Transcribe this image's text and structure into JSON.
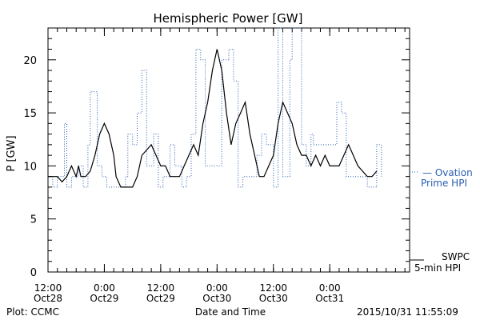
{
  "chart_data": {
    "type": "line",
    "title": "Hemispheric Power [GW]",
    "xlabel": "Date and Time",
    "ylabel": "P [GW]",
    "ylim": [
      0,
      23
    ],
    "yticks": [
      0,
      5,
      10,
      15,
      20
    ],
    "xlim": [
      "2015-10-28T12:00",
      "2015-10-31T17:00"
    ],
    "xtick_labels": [
      {
        "t": "2015-10-28T12:00",
        "time": "12:00",
        "date": "Oct28"
      },
      {
        "t": "2015-10-29T00:00",
        "time": "0:00",
        "date": "Oct29"
      },
      {
        "t": "2015-10-29T12:00",
        "time": "12:00",
        "date": "Oct29"
      },
      {
        "t": "2015-10-30T00:00",
        "time": "0:00",
        "date": "Oct30"
      },
      {
        "t": "2015-10-30T12:00",
        "time": "12:00",
        "date": "Oct30"
      },
      {
        "t": "2015-10-31T00:00",
        "time": "0:00",
        "date": "Oct31"
      }
    ],
    "series": [
      {
        "name": "Ovation Prime HPI",
        "color": "#2a5db0",
        "style": "dotted-step",
        "points": [
          [
            "2015-10-28T12:00",
            9
          ],
          [
            "2015-10-28T13:00",
            8
          ],
          [
            "2015-10-28T14:00",
            9
          ],
          [
            "2015-10-28T15:30",
            14
          ],
          [
            "2015-10-28T16:00",
            8
          ],
          [
            "2015-10-28T17:00",
            9
          ],
          [
            "2015-10-28T18:30",
            10
          ],
          [
            "2015-10-28T19:30",
            8
          ],
          [
            "2015-10-28T20:30",
            12
          ],
          [
            "2015-10-28T21:00",
            17
          ],
          [
            "2015-10-28T22:30",
            10
          ],
          [
            "2015-10-28T23:30",
            9
          ],
          [
            "2015-10-29T00:30",
            8
          ],
          [
            "2015-10-29T02:00",
            8
          ],
          [
            "2015-10-29T03:30",
            8
          ],
          [
            "2015-10-29T04:30",
            9
          ],
          [
            "2015-10-29T05:00",
            13
          ],
          [
            "2015-10-29T06:00",
            12
          ],
          [
            "2015-10-29T07:00",
            15
          ],
          [
            "2015-10-29T08:00",
            19
          ],
          [
            "2015-10-29T09:00",
            10
          ],
          [
            "2015-10-29T10:30",
            13
          ],
          [
            "2015-10-29T11:30",
            8
          ],
          [
            "2015-10-29T12:30",
            9
          ],
          [
            "2015-10-29T14:00",
            12
          ],
          [
            "2015-10-29T15:00",
            10
          ],
          [
            "2015-10-29T16:30",
            8
          ],
          [
            "2015-10-29T17:30",
            9
          ],
          [
            "2015-10-29T18:30",
            13
          ],
          [
            "2015-10-29T19:30",
            21
          ],
          [
            "2015-10-29T20:30",
            20
          ],
          [
            "2015-10-29T21:30",
            10
          ],
          [
            "2015-10-30T00:30",
            10
          ],
          [
            "2015-10-30T01:00",
            20
          ],
          [
            "2015-10-30T02:30",
            21
          ],
          [
            "2015-10-30T03:30",
            18
          ],
          [
            "2015-10-30T04:30",
            8
          ],
          [
            "2015-10-30T05:30",
            9
          ],
          [
            "2015-10-30T07:30",
            9
          ],
          [
            "2015-10-30T08:30",
            11
          ],
          [
            "2015-10-30T09:30",
            13
          ],
          [
            "2015-10-30T10:30",
            12
          ],
          [
            "2015-10-30T12:00",
            8
          ],
          [
            "2015-10-30T13:00",
            23
          ],
          [
            "2015-10-30T14:00",
            9
          ],
          [
            "2015-10-30T15:30",
            20
          ],
          [
            "2015-10-30T16:00",
            23
          ],
          [
            "2015-10-30T17:00",
            23
          ],
          [
            "2015-10-30T18:00",
            12
          ],
          [
            "2015-10-30T19:00",
            10
          ],
          [
            "2015-10-30T20:00",
            13
          ],
          [
            "2015-10-30T20:30",
            12
          ],
          [
            "2015-10-30T22:30",
            12
          ],
          [
            "2015-10-31T00:30",
            12
          ],
          [
            "2015-10-31T01:30",
            16
          ],
          [
            "2015-10-31T02:30",
            15
          ],
          [
            "2015-10-31T03:30",
            9
          ],
          [
            "2015-10-31T05:30",
            9
          ],
          [
            "2015-10-31T06:30",
            9
          ],
          [
            "2015-10-31T08:00",
            8
          ],
          [
            "2015-10-31T09:00",
            8
          ],
          [
            "2015-10-31T10:00",
            12
          ],
          [
            "2015-10-31T11:00",
            9
          ]
        ]
      },
      {
        "name": "SWPC 5-min HPI",
        "color": "#000000",
        "style": "solid",
        "points": [
          [
            "2015-10-28T12:00",
            9
          ],
          [
            "2015-10-28T14:00",
            9
          ],
          [
            "2015-10-28T15:00",
            8.5
          ],
          [
            "2015-10-28T16:00",
            9
          ],
          [
            "2015-10-28T17:00",
            10
          ],
          [
            "2015-10-28T18:00",
            9
          ],
          [
            "2015-10-28T18:30",
            10
          ],
          [
            "2015-10-28T19:00",
            9
          ],
          [
            "2015-10-28T20:00",
            9
          ],
          [
            "2015-10-28T21:00",
            9.5
          ],
          [
            "2015-10-28T22:00",
            11
          ],
          [
            "2015-10-28T23:00",
            13
          ],
          [
            "2015-10-29T00:00",
            14
          ],
          [
            "2015-10-29T01:00",
            13
          ],
          [
            "2015-10-29T02:00",
            11
          ],
          [
            "2015-10-29T02:30",
            9
          ],
          [
            "2015-10-29T03:30",
            8
          ],
          [
            "2015-10-29T06:00",
            8
          ],
          [
            "2015-10-29T07:00",
            9
          ],
          [
            "2015-10-29T08:00",
            11
          ],
          [
            "2015-10-29T09:00",
            11.5
          ],
          [
            "2015-10-29T10:00",
            12
          ],
          [
            "2015-10-29T11:00",
            11
          ],
          [
            "2015-10-29T12:00",
            10
          ],
          [
            "2015-10-29T13:00",
            10
          ],
          [
            "2015-10-29T14:00",
            9
          ],
          [
            "2015-10-29T16:00",
            9
          ],
          [
            "2015-10-29T17:00",
            10
          ],
          [
            "2015-10-29T18:00",
            11
          ],
          [
            "2015-10-29T19:00",
            12
          ],
          [
            "2015-10-29T20:00",
            11
          ],
          [
            "2015-10-29T21:00",
            14
          ],
          [
            "2015-10-29T22:00",
            16
          ],
          [
            "2015-10-29T23:00",
            19
          ],
          [
            "2015-10-30T00:00",
            21
          ],
          [
            "2015-10-30T01:00",
            19
          ],
          [
            "2015-10-30T02:00",
            15
          ],
          [
            "2015-10-30T03:00",
            12
          ],
          [
            "2015-10-30T04:00",
            14
          ],
          [
            "2015-10-30T05:00",
            15
          ],
          [
            "2015-10-30T06:00",
            16
          ],
          [
            "2015-10-30T07:00",
            13
          ],
          [
            "2015-10-30T08:00",
            11
          ],
          [
            "2015-10-30T09:00",
            9
          ],
          [
            "2015-10-30T10:00",
            9
          ],
          [
            "2015-10-30T11:00",
            10
          ],
          [
            "2015-10-30T12:00",
            11
          ],
          [
            "2015-10-30T13:00",
            14
          ],
          [
            "2015-10-30T14:00",
            16
          ],
          [
            "2015-10-30T15:00",
            15
          ],
          [
            "2015-10-30T16:00",
            14
          ],
          [
            "2015-10-30T17:00",
            12
          ],
          [
            "2015-10-30T18:00",
            11
          ],
          [
            "2015-10-30T19:00",
            11
          ],
          [
            "2015-10-30T20:00",
            10
          ],
          [
            "2015-10-30T21:00",
            11
          ],
          [
            "2015-10-30T22:00",
            10
          ],
          [
            "2015-10-30T23:00",
            11
          ],
          [
            "2015-10-31T00:00",
            10
          ],
          [
            "2015-10-31T02:00",
            10
          ],
          [
            "2015-10-31T03:00",
            11
          ],
          [
            "2015-10-31T04:00",
            12
          ],
          [
            "2015-10-31T05:00",
            11
          ],
          [
            "2015-10-31T06:00",
            10
          ],
          [
            "2015-10-31T08:00",
            9
          ],
          [
            "2015-10-31T09:00",
            9
          ],
          [
            "2015-10-31T10:00",
            9.5
          ]
        ]
      }
    ],
    "legend": [
      {
        "line1": "— Ovation",
        "line2": "Prime HPI",
        "color": "#2a5db0"
      },
      {
        "line1": "SWPC",
        "line2": "5-min HPI",
        "color": "#000000"
      }
    ]
  },
  "footer": {
    "left": "Plot: CCMC",
    "center": "Date and Time",
    "right": "2015/10/31 11:55:09"
  }
}
